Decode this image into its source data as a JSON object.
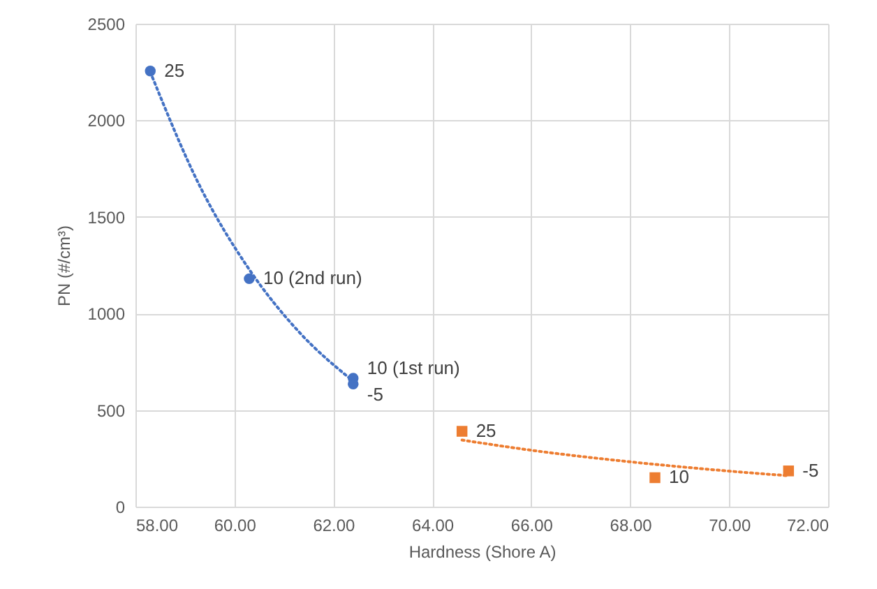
{
  "chart_data": {
    "type": "scatter",
    "xlabel": "Hardness (Shore A)",
    "ylabel": "PN (#/cm³)",
    "xlim": [
      58,
      72
    ],
    "ylim": [
      0,
      2500
    ],
    "xticks": [
      {
        "value": 58,
        "label": "58.00"
      },
      {
        "value": 60,
        "label": "60.00"
      },
      {
        "value": 62,
        "label": "62.00"
      },
      {
        "value": 64,
        "label": "64.00"
      },
      {
        "value": 66,
        "label": "66.00"
      },
      {
        "value": 68,
        "label": "68.00"
      },
      {
        "value": 70,
        "label": "70.00"
      },
      {
        "value": 72,
        "label": "72.00"
      }
    ],
    "yticks": [
      0,
      500,
      1000,
      1500,
      2000,
      2500
    ],
    "grid": true,
    "series": [
      {
        "color": "#4472c4",
        "marker": "circle",
        "x": [
          58.3,
          60.3,
          62.4,
          62.4
        ],
        "values": [
          2255,
          1180,
          665,
          635
        ]
      },
      {
        "color": "#ed7d31",
        "marker": "square",
        "x": [
          64.6,
          68.5,
          71.2
        ],
        "values": [
          390,
          150,
          185
        ]
      },
      {
        "type": "line",
        "color": "#4472c4",
        "line_style": "dotted",
        "marker": "none",
        "x": [
          58.3,
          59.3,
          60.3,
          61.3,
          62.4
        ],
        "values": [
          2250,
          1660,
          1228,
          906,
          650
        ]
      },
      {
        "type": "line",
        "color": "#ed7d31",
        "line_style": "dotted",
        "marker": "none",
        "x": [
          64.6,
          66,
          68,
          70,
          71.2
        ],
        "values": [
          345,
          292,
          232,
          184,
          160
        ]
      }
    ],
    "annotations": [
      {
        "text": "25",
        "x": 58.3,
        "y": 2255
      },
      {
        "text": "10 (2nd run)",
        "x": 60.3,
        "y": 1180
      },
      {
        "text": "10 (1st run)",
        "x": 62.4,
        "y": 665
      },
      {
        "text": "-5",
        "x": 62.4,
        "y": 635
      },
      {
        "text": "25",
        "x": 64.6,
        "y": 390
      },
      {
        "text": "10",
        "x": 68.5,
        "y": 150
      },
      {
        "text": "-5",
        "x": 71.2,
        "y": 185
      }
    ]
  }
}
